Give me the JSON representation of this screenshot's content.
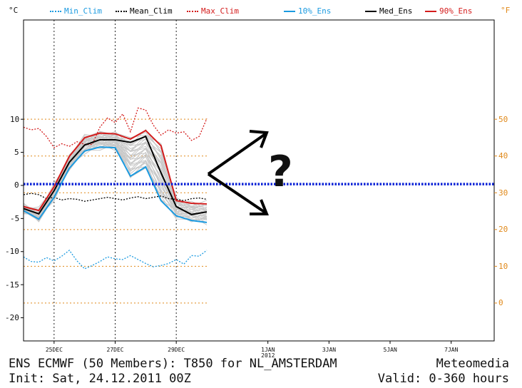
{
  "chart_data": {
    "type": "line",
    "left_unit": "°C",
    "right_unit": "°F",
    "legend": [
      {
        "name": "Min_Clim",
        "color": "#1a9ae0",
        "style": "dotted"
      },
      {
        "name": "Mean_Clim",
        "color": "#000000",
        "style": "dotted"
      },
      {
        "name": "Max_Clim",
        "color": "#d41c1c",
        "style": "dotted"
      },
      {
        "name": "10%_Ens",
        "color": "#1a9ae0",
        "style": "solid"
      },
      {
        "name": "Med_Ens",
        "color": "#000000",
        "style": "solid"
      },
      {
        "name": "90%_Ens",
        "color": "#d41c1c",
        "style": "solid"
      }
    ],
    "ylim": [
      -23.5,
      25
    ],
    "x_range": [
      0,
      15
    ],
    "y_ticks": [
      10,
      5,
      0,
      -5,
      -10,
      -15,
      -20
    ],
    "f_ticks": [
      50,
      40,
      30,
      20,
      10,
      0
    ],
    "x_ticks": [
      {
        "day": 1,
        "label": "25DEC"
      },
      {
        "day": 3,
        "label": "27DEC"
      },
      {
        "day": 5,
        "label": "29DEC"
      },
      {
        "day": 8,
        "label": "1JAN",
        "sub": "2012"
      },
      {
        "day": 10,
        "label": "3JAN"
      },
      {
        "day": 12,
        "label": "5JAN"
      },
      {
        "day": 14,
        "label": "7JAN"
      }
    ],
    "series": [
      {
        "name": "Max_Clim",
        "x": [
          0,
          0.25,
          0.5,
          0.75,
          1,
          1.25,
          1.5,
          1.75,
          2,
          2.25,
          2.5,
          2.75,
          3,
          3.25,
          3.5,
          3.75,
          4,
          4.25,
          4.5,
          4.75,
          5,
          5.25,
          5.5,
          5.75,
          6
        ],
        "values": [
          8.8,
          8.4,
          8.6,
          7.4,
          5.7,
          6.3,
          5.9,
          6.6,
          6.2,
          6.2,
          8.8,
          10.2,
          9.5,
          10.8,
          8.1,
          11.7,
          11.4,
          9.1,
          7.6,
          8.4,
          7.9,
          8.1,
          6.8,
          7.4,
          10.1
        ]
      },
      {
        "name": "Mean_Clim",
        "x": [
          0,
          0.25,
          0.5,
          0.75,
          1,
          1.25,
          1.5,
          1.75,
          2,
          2.25,
          2.5,
          2.75,
          3,
          3.25,
          3.5,
          3.75,
          4,
          4.25,
          4.5,
          4.75,
          5,
          5.25,
          5.5,
          5.75,
          6
        ],
        "values": [
          -1.4,
          -1.2,
          -1.4,
          -2.0,
          -1.8,
          -2.2,
          -2.0,
          -2.1,
          -2.4,
          -2.2,
          -2.0,
          -1.8,
          -2.0,
          -2.2,
          -1.9,
          -1.7,
          -2.0,
          -1.8,
          -1.6,
          -2.0,
          -2.1,
          -2.3,
          -2.0,
          -1.9,
          -2.1
        ]
      },
      {
        "name": "Min_Clim",
        "x": [
          0,
          0.25,
          0.5,
          0.75,
          1,
          1.25,
          1.5,
          1.75,
          2,
          2.25,
          2.5,
          2.75,
          3,
          3.25,
          3.5,
          3.75,
          4,
          4.25,
          4.5,
          4.75,
          5,
          5.25,
          5.5,
          5.75,
          6
        ],
        "values": [
          -10.8,
          -11.5,
          -11.6,
          -10.9,
          -11.4,
          -10.7,
          -9.8,
          -11.4,
          -12.6,
          -12.1,
          -11.5,
          -10.8,
          -11.1,
          -11.2,
          -10.6,
          -11.2,
          -11.8,
          -12.3,
          -12.1,
          -11.8,
          -11.2,
          -11.9,
          -10.6,
          -10.7,
          -9.8
        ]
      },
      {
        "name": "10%_Ens",
        "x": [
          0,
          0.5,
          1,
          1.5,
          2,
          2.5,
          3,
          3.5,
          4,
          4.5,
          5,
          5.5,
          6
        ],
        "values": [
          -3.8,
          -5.1,
          -1.8,
          2.6,
          5.2,
          5.8,
          5.7,
          1.4,
          2.8,
          -2.3,
          -4.6,
          -5.3,
          -5.6
        ]
      },
      {
        "name": "Med_Ens",
        "x": [
          0,
          0.5,
          1,
          1.5,
          2,
          2.5,
          3,
          3.5,
          4,
          4.5,
          5,
          5.5,
          6
        ],
        "values": [
          -3.5,
          -4.3,
          -0.8,
          3.5,
          6.1,
          6.9,
          6.9,
          6.5,
          7.4,
          1.9,
          -3.2,
          -4.4,
          -4.0
        ]
      },
      {
        "name": "90%_Ens",
        "x": [
          0,
          0.5,
          1,
          1.5,
          2,
          2.5,
          3,
          3.5,
          4,
          4.5,
          5,
          5.5,
          6
        ],
        "values": [
          -3.2,
          -3.8,
          -0.2,
          4.4,
          7.2,
          7.9,
          7.8,
          7.0,
          8.3,
          6.0,
          -2.3,
          -2.7,
          -2.8
        ]
      }
    ],
    "reference_line": {
      "value": 0.2,
      "color": "#0b22d6"
    },
    "annotation": "?"
  },
  "footer": {
    "line1": "ENS ECMWF (50 Members): T850 for NL_AMSTERDAM",
    "line2": "Init: Sat, 24.12.2011 00Z",
    "brand": "Meteomedia",
    "valid": "Valid: 0-360 hours"
  }
}
